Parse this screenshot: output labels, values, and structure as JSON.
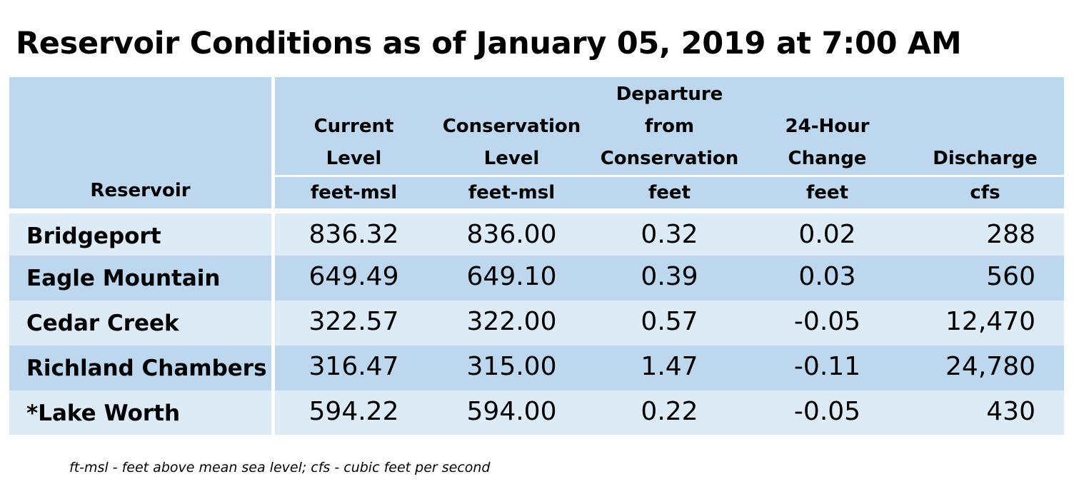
{
  "title": "Reservoir Conditions as of January 05, 2019 at 7:00 AM",
  "colors": {
    "header_bg": "#bdd7ee",
    "row_light": "#ddebf7",
    "row_dark": "#bdd7ee",
    "divider": "#ffffff"
  },
  "table": {
    "headers": [
      {
        "label_lines": [
          ""
        ],
        "unit": "Reservoir"
      },
      {
        "label_lines": [
          "Current",
          "Level"
        ],
        "unit": "feet-msl"
      },
      {
        "label_lines": [
          "Conservation",
          "Level"
        ],
        "unit": "feet-msl"
      },
      {
        "label_lines": [
          "Departure",
          "from",
          "Conservation"
        ],
        "unit": "feet"
      },
      {
        "label_lines": [
          "24-Hour",
          "Change"
        ],
        "unit": "feet"
      },
      {
        "label_lines": [
          "Discharge"
        ],
        "unit": "cfs"
      }
    ],
    "rows": [
      {
        "name": "Bridgeport",
        "current": "836.32",
        "conservation": "836.00",
        "departure": "0.32",
        "change": "0.02",
        "discharge": "288"
      },
      {
        "name": "Eagle Mountain",
        "current": "649.49",
        "conservation": "649.10",
        "departure": "0.39",
        "change": "0.03",
        "discharge": "560"
      },
      {
        "name": "Cedar Creek",
        "current": "322.57",
        "conservation": "322.00",
        "departure": "0.57",
        "change": "-0.05",
        "discharge": "12,470"
      },
      {
        "name": "Richland Chambers",
        "current": "316.47",
        "conservation": "315.00",
        "departure": "1.47",
        "change": "-0.11",
        "discharge": "24,780"
      },
      {
        "name": "*Lake Worth",
        "current": "594.22",
        "conservation": "594.00",
        "departure": "0.22",
        "change": "-0.05",
        "discharge": "430"
      }
    ]
  },
  "footnote": "ft-msl - feet above mean sea level; cfs - cubic feet per second"
}
